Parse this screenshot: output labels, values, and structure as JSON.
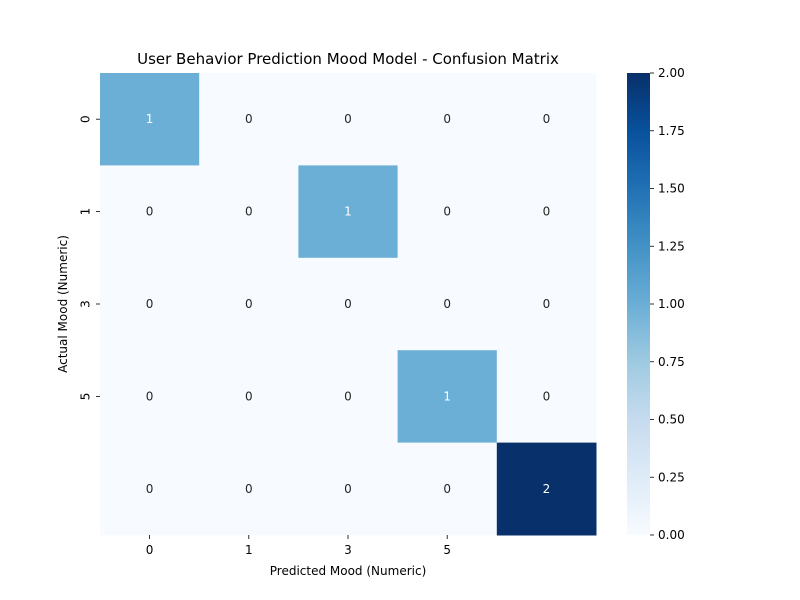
{
  "chart_data": {
    "type": "heatmap",
    "title": "User Behavior Prediction Mood Model - Confusion Matrix",
    "xlabel": "Predicted Mood (Numeric)",
    "ylabel": "Actual Mood (Numeric)",
    "x_tick_labels": [
      "0",
      "1",
      "3",
      "5",
      ""
    ],
    "y_tick_labels": [
      "0",
      "1",
      "3",
      "5",
      ""
    ],
    "values": [
      [
        1,
        0,
        0,
        0,
        0
      ],
      [
        0,
        0,
        1,
        0,
        0
      ],
      [
        0,
        0,
        0,
        0,
        0
      ],
      [
        0,
        0,
        0,
        1,
        0
      ],
      [
        0,
        0,
        0,
        0,
        2
      ]
    ],
    "colorbar": {
      "range": [
        0,
        2
      ],
      "ticks": [
        "0.00",
        "0.25",
        "0.50",
        "0.75",
        "1.00",
        "1.25",
        "1.50",
        "1.75",
        "2.00"
      ],
      "colormap": "Blues"
    },
    "annotations": true,
    "grid": false
  }
}
